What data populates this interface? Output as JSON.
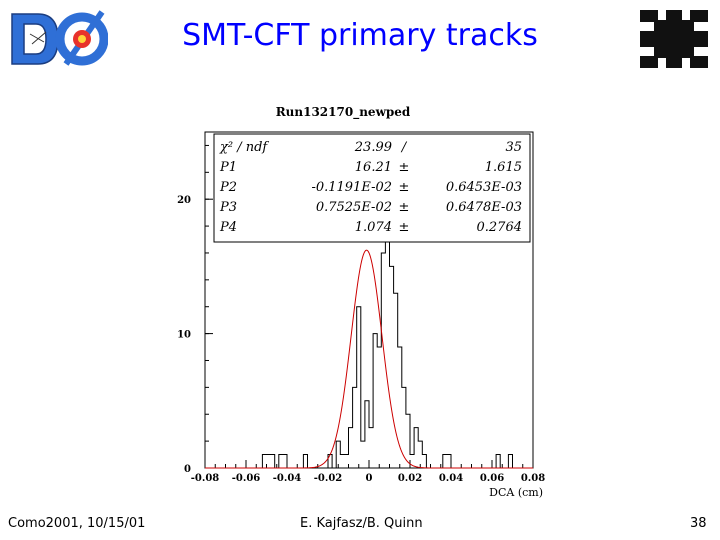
{
  "slide": {
    "title": "SMT-CFT primary tracks",
    "footer_left": "Como2001, 10/15/01",
    "footer_center": "E. Kajfasz/B. Quinn",
    "footer_right": "38"
  },
  "colors": {
    "title": "#0000ff",
    "fit_curve": "#cc0000",
    "histogram": "#000000",
    "d0_logo_blue": "#2f6fd6",
    "d0_logo_core": "#e8322b",
    "fnal_logo": "#111111"
  },
  "logos": {
    "left": "d0-logo",
    "right": "fermilab-logo"
  },
  "chart_data": {
    "type": "bar",
    "title": "Run132170_newped",
    "xlabel": "DCA (cm)",
    "ylabel": "",
    "xlim": [
      -0.08,
      0.08
    ],
    "ylim": [
      0,
      25
    ],
    "x_ticks": [
      "-0.08",
      "-0.06",
      "-0.04",
      "-0.02",
      "0",
      "0.02",
      "0.04",
      "0.06",
      "0.08"
    ],
    "y_ticks": [
      "0",
      "10",
      "20"
    ],
    "grid": false,
    "bin_width": 0.002,
    "bin_start": -0.08,
    "histogram": [
      0,
      0,
      0,
      0,
      0,
      0,
      0,
      0,
      0,
      0,
      0,
      0,
      0,
      0,
      1,
      1,
      1,
      0,
      1,
      1,
      0,
      0,
      0,
      0,
      1,
      0,
      0,
      0,
      0,
      0,
      1,
      0,
      2,
      1,
      1,
      3,
      6,
      12,
      2,
      5,
      3,
      10,
      9,
      16,
      17,
      15,
      13,
      9,
      6,
      4,
      1,
      3,
      2,
      1,
      0,
      0,
      0,
      0,
      1,
      1,
      0,
      0,
      0,
      0,
      0,
      0,
      0,
      0,
      0,
      0,
      0,
      1,
      0,
      0,
      1,
      0,
      0,
      0,
      0,
      0
    ],
    "fit_label": "gaussian fit",
    "fit": {
      "P1": 16.21,
      "P2": -0.001191,
      "P3": 0.007525,
      "P4": 1.074
    },
    "stats": {
      "rows": [
        {
          "name": "χ² / ndf",
          "value": "23.99",
          "sep": "/",
          "error": "35"
        },
        {
          "name": "P1",
          "value": "16.21",
          "sep": "±",
          "error": "1.615"
        },
        {
          "name": "P2",
          "value": "-0.1191E-02",
          "sep": "±",
          "error": "0.6453E-03"
        },
        {
          "name": "P3",
          "value": "0.7525E-02",
          "sep": "±",
          "error": "0.6478E-03"
        },
        {
          "name": "P4",
          "value": "1.074",
          "sep": "±",
          "error": "0.2764"
        }
      ]
    }
  }
}
